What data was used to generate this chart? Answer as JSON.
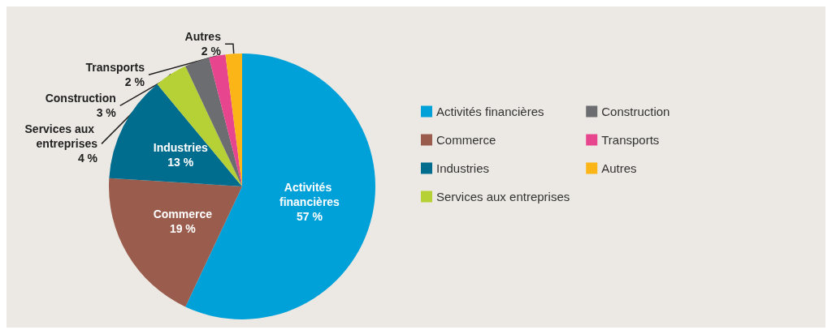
{
  "chart_data": {
    "type": "pie",
    "categories": [
      "Activités financières",
      "Commerce",
      "Industries",
      "Services aux entreprises",
      "Construction",
      "Transports",
      "Autres"
    ],
    "values": [
      57,
      19,
      13,
      4,
      3,
      2,
      2
    ],
    "colors": [
      "#00a0d9",
      "#9a5c4c",
      "#006d8f",
      "#b6d136",
      "#6c6d70",
      "#e8458f",
      "#fbb516"
    ],
    "value_labels": [
      "57 %",
      "19 %",
      "13 %",
      "4 %",
      "3 %",
      "2 %",
      "2 %"
    ],
    "legend": "right"
  }
}
